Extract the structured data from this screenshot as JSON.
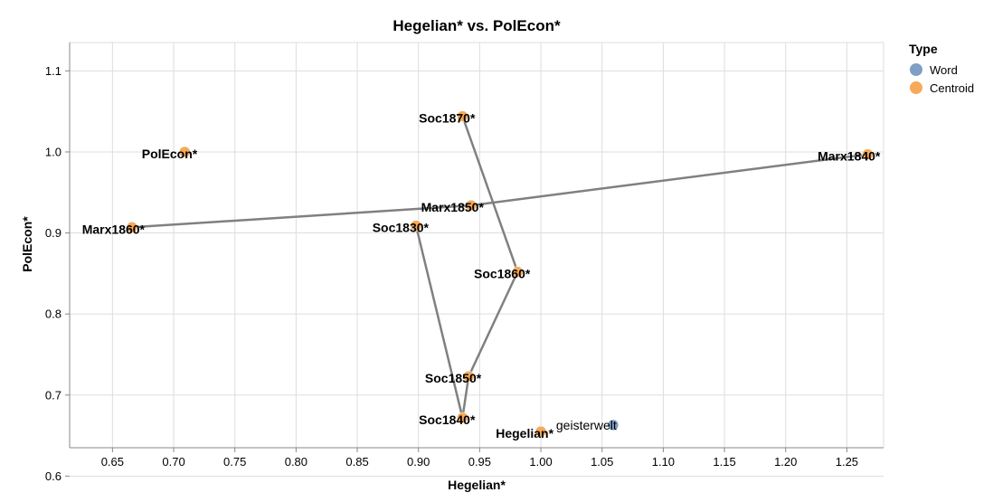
{
  "chart_data": {
    "type": "scatter",
    "title": "Hegelian* vs. PolEcon*",
    "xlabel": "Hegelian*",
    "ylabel": "PolEcon*",
    "xlim": [
      0.615,
      1.28
    ],
    "ylim": [
      0.635,
      1.135
    ],
    "xticks": [
      0.65,
      0.7,
      0.75,
      0.8,
      0.85,
      0.9,
      0.95,
      1.0,
      1.05,
      1.1,
      1.15,
      1.2,
      1.25
    ],
    "xtick_labels": [
      "0.65",
      "0.70",
      "0.75",
      "0.80",
      "0.85",
      "0.90",
      "0.95",
      "1.00",
      "1.05",
      "1.10",
      "1.15",
      "1.20",
      "1.25"
    ],
    "yticks": [
      0.6,
      0.7,
      0.8,
      0.9,
      1.0,
      1.1
    ],
    "ytick_labels": [
      "0.6",
      "0.7",
      "0.8",
      "0.9",
      "1.0",
      "1.1"
    ],
    "grid": true,
    "legend": {
      "title": "Type",
      "position": "top-right",
      "entries": [
        {
          "name": "Word",
          "color": "#7f9fc4"
        },
        {
          "name": "Centroid",
          "color": "#f6aa5a"
        }
      ]
    },
    "points": [
      {
        "label": "PolEcon*",
        "type": "Centroid",
        "x": 0.709,
        "y": 1.0
      },
      {
        "label": "Soc1870*",
        "type": "Centroid",
        "x": 0.936,
        "y": 1.044
      },
      {
        "label": "Marx1840*",
        "type": "Centroid",
        "x": 1.267,
        "y": 0.997
      },
      {
        "label": "Marx1860*",
        "type": "Centroid",
        "x": 0.666,
        "y": 0.907
      },
      {
        "label": "Marx1850*",
        "type": "Centroid",
        "x": 0.943,
        "y": 0.934
      },
      {
        "label": "Soc1830*",
        "type": "Centroid",
        "x": 0.898,
        "y": 0.909
      },
      {
        "label": "Soc1860*",
        "type": "Centroid",
        "x": 0.981,
        "y": 0.852
      },
      {
        "label": "Soc1850*",
        "type": "Centroid",
        "x": 0.941,
        "y": 0.723
      },
      {
        "label": "Soc1840*",
        "type": "Centroid",
        "x": 0.936,
        "y": 0.672
      },
      {
        "label": "Hegelian*",
        "type": "Centroid",
        "x": 1.0,
        "y": 0.655
      },
      {
        "label": "geisterwelt",
        "type": "Word",
        "x": 1.059,
        "y": 0.663
      }
    ],
    "paths": [
      {
        "points": [
          "Marx1860*",
          "Marx1850*",
          "Marx1840*"
        ]
      },
      {
        "points": [
          "Soc1830*",
          "Soc1840*",
          "Soc1850*",
          "Soc1860*",
          "Soc1870*"
        ]
      }
    ]
  }
}
